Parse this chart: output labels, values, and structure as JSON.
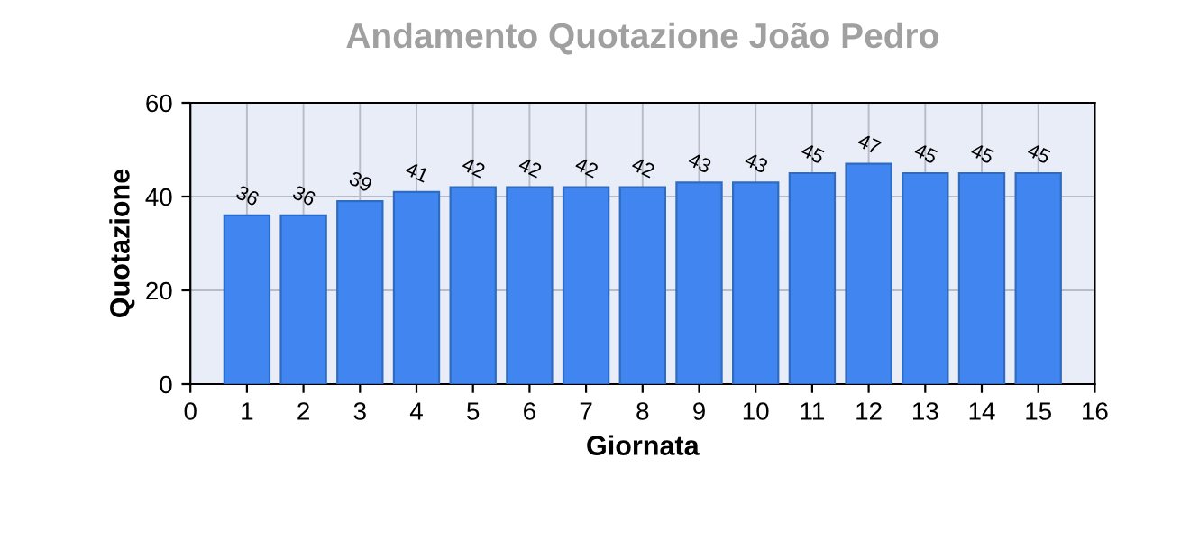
{
  "chart_data": {
    "type": "bar",
    "title": "Andamento Quotazione João Pedro",
    "xlabel": "Giornata",
    "ylabel": "Quotazione",
    "x": [
      1,
      2,
      3,
      4,
      5,
      6,
      7,
      8,
      9,
      10,
      11,
      12,
      13,
      14,
      15
    ],
    "values": [
      36,
      36,
      39,
      41,
      42,
      42,
      42,
      42,
      43,
      43,
      45,
      47,
      45,
      45,
      45
    ],
    "color": "#4186f0",
    "xlim": [
      0,
      16
    ],
    "xticks": [
      0,
      1,
      2,
      3,
      4,
      5,
      6,
      7,
      8,
      9,
      10,
      11,
      12,
      13,
      14,
      15,
      16
    ],
    "ylim": [
      0,
      60
    ],
    "yticks": [
      0,
      20,
      40,
      60
    ],
    "grid": true,
    "data_labels": true
  }
}
